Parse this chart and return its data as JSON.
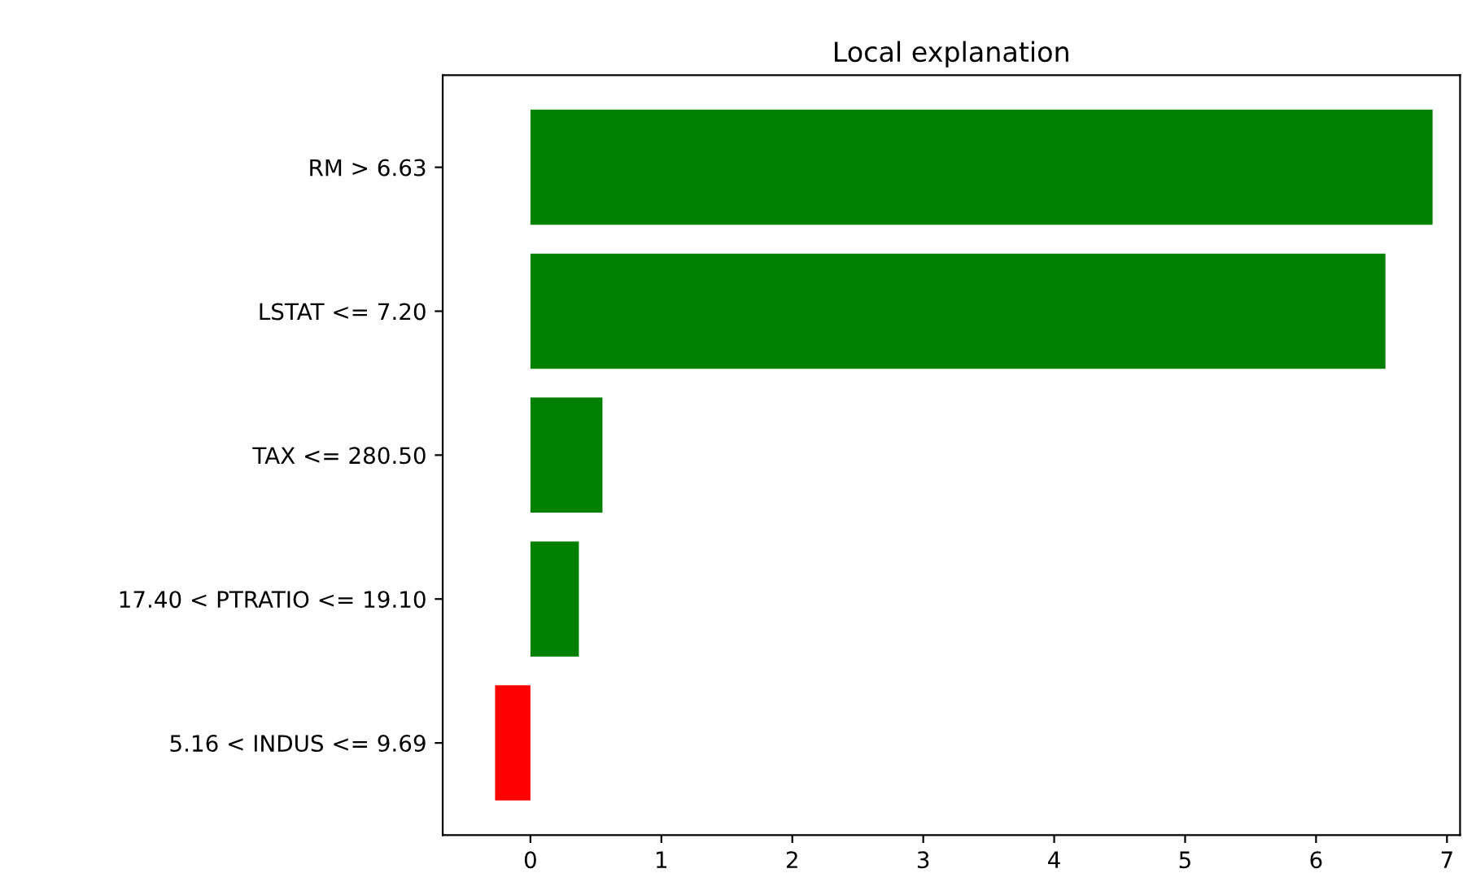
{
  "chart_data": {
    "type": "bar",
    "orientation": "horizontal",
    "title": "Local explanation",
    "categories": [
      "RM > 6.63",
      "LSTAT <= 7.20",
      "TAX <= 280.50",
      "17.40 < PTRATIO <= 19.10",
      "5.16 < INDUS <= 9.69"
    ],
    "values": [
      6.89,
      6.53,
      0.55,
      0.37,
      -0.27
    ],
    "colors": [
      "#008000",
      "#008000",
      "#008000",
      "#008000",
      "#ff0000"
    ],
    "xlim": [
      -0.67,
      7.1
    ],
    "xticks": [
      0,
      1,
      2,
      3,
      4,
      5,
      6,
      7
    ],
    "grid": false,
    "legend": false
  }
}
